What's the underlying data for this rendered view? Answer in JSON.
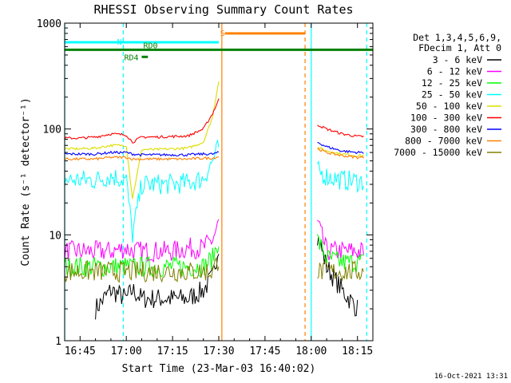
{
  "chart_data": {
    "type": "line",
    "title": "RHESSI Observing Summary Count Rates",
    "xlabel": "Start Time (23-Mar-03 16:40:02)",
    "ylabel": "Count Rate (s⁻¹ detector⁻¹)",
    "y_scale": "log",
    "xlim": [
      "16:40",
      "18:20"
    ],
    "ylim": [
      1,
      1000
    ],
    "x_ticks": [
      "16:45",
      "17:00",
      "17:15",
      "17:30",
      "17:45",
      "18:00",
      "18:15"
    ],
    "y_ticks": [
      "1",
      "10",
      "100",
      "1000"
    ],
    "grid": false,
    "legend_position": "right",
    "legend_header": [
      "Det 1,3,4,5,6,9,",
      "FDecim 1, Att 0"
    ],
    "footer_date": "16-Oct-2021 13:31",
    "x": [
      "16:40",
      "16:45",
      "16:50",
      "16:55",
      "17:00",
      "17:02",
      "17:05",
      "17:10",
      "17:15",
      "17:20",
      "17:25",
      "17:28",
      "17:30",
      "17:31",
      "18:02",
      "18:05",
      "18:10",
      "18:15",
      "18:17"
    ],
    "series": [
      {
        "name": "3 - 6 keV",
        "color": "#000000",
        "values": [
          null,
          null,
          2,
          3,
          2.5,
          3,
          2.5,
          2.5,
          2.5,
          2.5,
          3,
          4,
          8,
          null,
          10,
          5,
          3,
          2,
          null
        ]
      },
      {
        "name": "6 - 12 keV",
        "color": "#ff00ff",
        "values": [
          7,
          7,
          7,
          7,
          7.5,
          7,
          7,
          7,
          7,
          7.5,
          7.5,
          9,
          13,
          null,
          13,
          7,
          7,
          7,
          7
        ]
      },
      {
        "name": "12 - 25 keV",
        "color": "#00ff00",
        "values": [
          5,
          5,
          5,
          5,
          5,
          5,
          5,
          5,
          5,
          5,
          5,
          6,
          9,
          null,
          9,
          6,
          5.5,
          5.5,
          5.5
        ]
      },
      {
        "name": "25 - 50 keV",
        "color": "#00ffff",
        "values": [
          33,
          33,
          33,
          36,
          33,
          10,
          30,
          30,
          30,
          31,
          34,
          50,
          68,
          null,
          40,
          36,
          33,
          32,
          32
        ]
      },
      {
        "name": "50 - 100 keV",
        "color": "#dddd00",
        "values": [
          65,
          65,
          66,
          70,
          70,
          22,
          64,
          64,
          65,
          66,
          75,
          130,
          290,
          null,
          67,
          62,
          58,
          56,
          56
        ]
      },
      {
        "name": "100 - 300 keV",
        "color": "#ff0000",
        "values": [
          82,
          82,
          84,
          90,
          88,
          75,
          84,
          84,
          85,
          86,
          100,
          140,
          190,
          null,
          110,
          100,
          90,
          85,
          85
        ]
      },
      {
        "name": "300 - 800 keV",
        "color": "#0000ff",
        "values": [
          58,
          58,
          58,
          60,
          60,
          58,
          57,
          57,
          57,
          57,
          58,
          58,
          60,
          null,
          75,
          68,
          62,
          60,
          60
        ]
      },
      {
        "name": "800 - 7000 keV",
        "color": "#ff8000",
        "values": [
          52,
          52,
          52,
          54,
          54,
          52,
          52,
          52,
          52,
          52,
          53,
          53,
          55,
          null,
          65,
          60,
          56,
          54,
          54
        ]
      },
      {
        "name": "7000 - 15000 keV",
        "color": "#808000",
        "values": [
          4.5,
          4.5,
          4.5,
          4.5,
          4.5,
          4.5,
          4.5,
          4.5,
          4.5,
          4.5,
          4.5,
          4.5,
          6,
          null,
          4.5,
          4.5,
          4.5,
          4.5,
          4.5
        ]
      }
    ],
    "annotations": [
      {
        "label": "N",
        "color": "#00ffff",
        "x_start": "16:40",
        "x_end": "17:30",
        "y": 660
      },
      {
        "label": "S",
        "color": "#ff8000",
        "x_start": "17:32",
        "x_end": "17:58",
        "y": 800
      },
      {
        "label": "RD0",
        "color": "#008000",
        "x_start": "16:40",
        "x_end": "18:20",
        "y": 560
      },
      {
        "label": "RD4",
        "color": "#008000",
        "x_start": "17:05",
        "x_end": "17:07",
        "y": 480
      }
    ],
    "markers": [
      {
        "color": "#00ffff",
        "style": "dashed",
        "x": "16:59"
      },
      {
        "color": "#00ffff",
        "style": "solid",
        "x": "16:40"
      },
      {
        "color": "#ff8000",
        "style": "solid",
        "x": "17:31"
      },
      {
        "color": "#ff8000",
        "style": "dashed",
        "x": "17:58"
      },
      {
        "color": "#00ffff",
        "style": "solid",
        "x": "18:00"
      },
      {
        "color": "#00ffff",
        "style": "dashed",
        "x": "18:18"
      }
    ]
  }
}
